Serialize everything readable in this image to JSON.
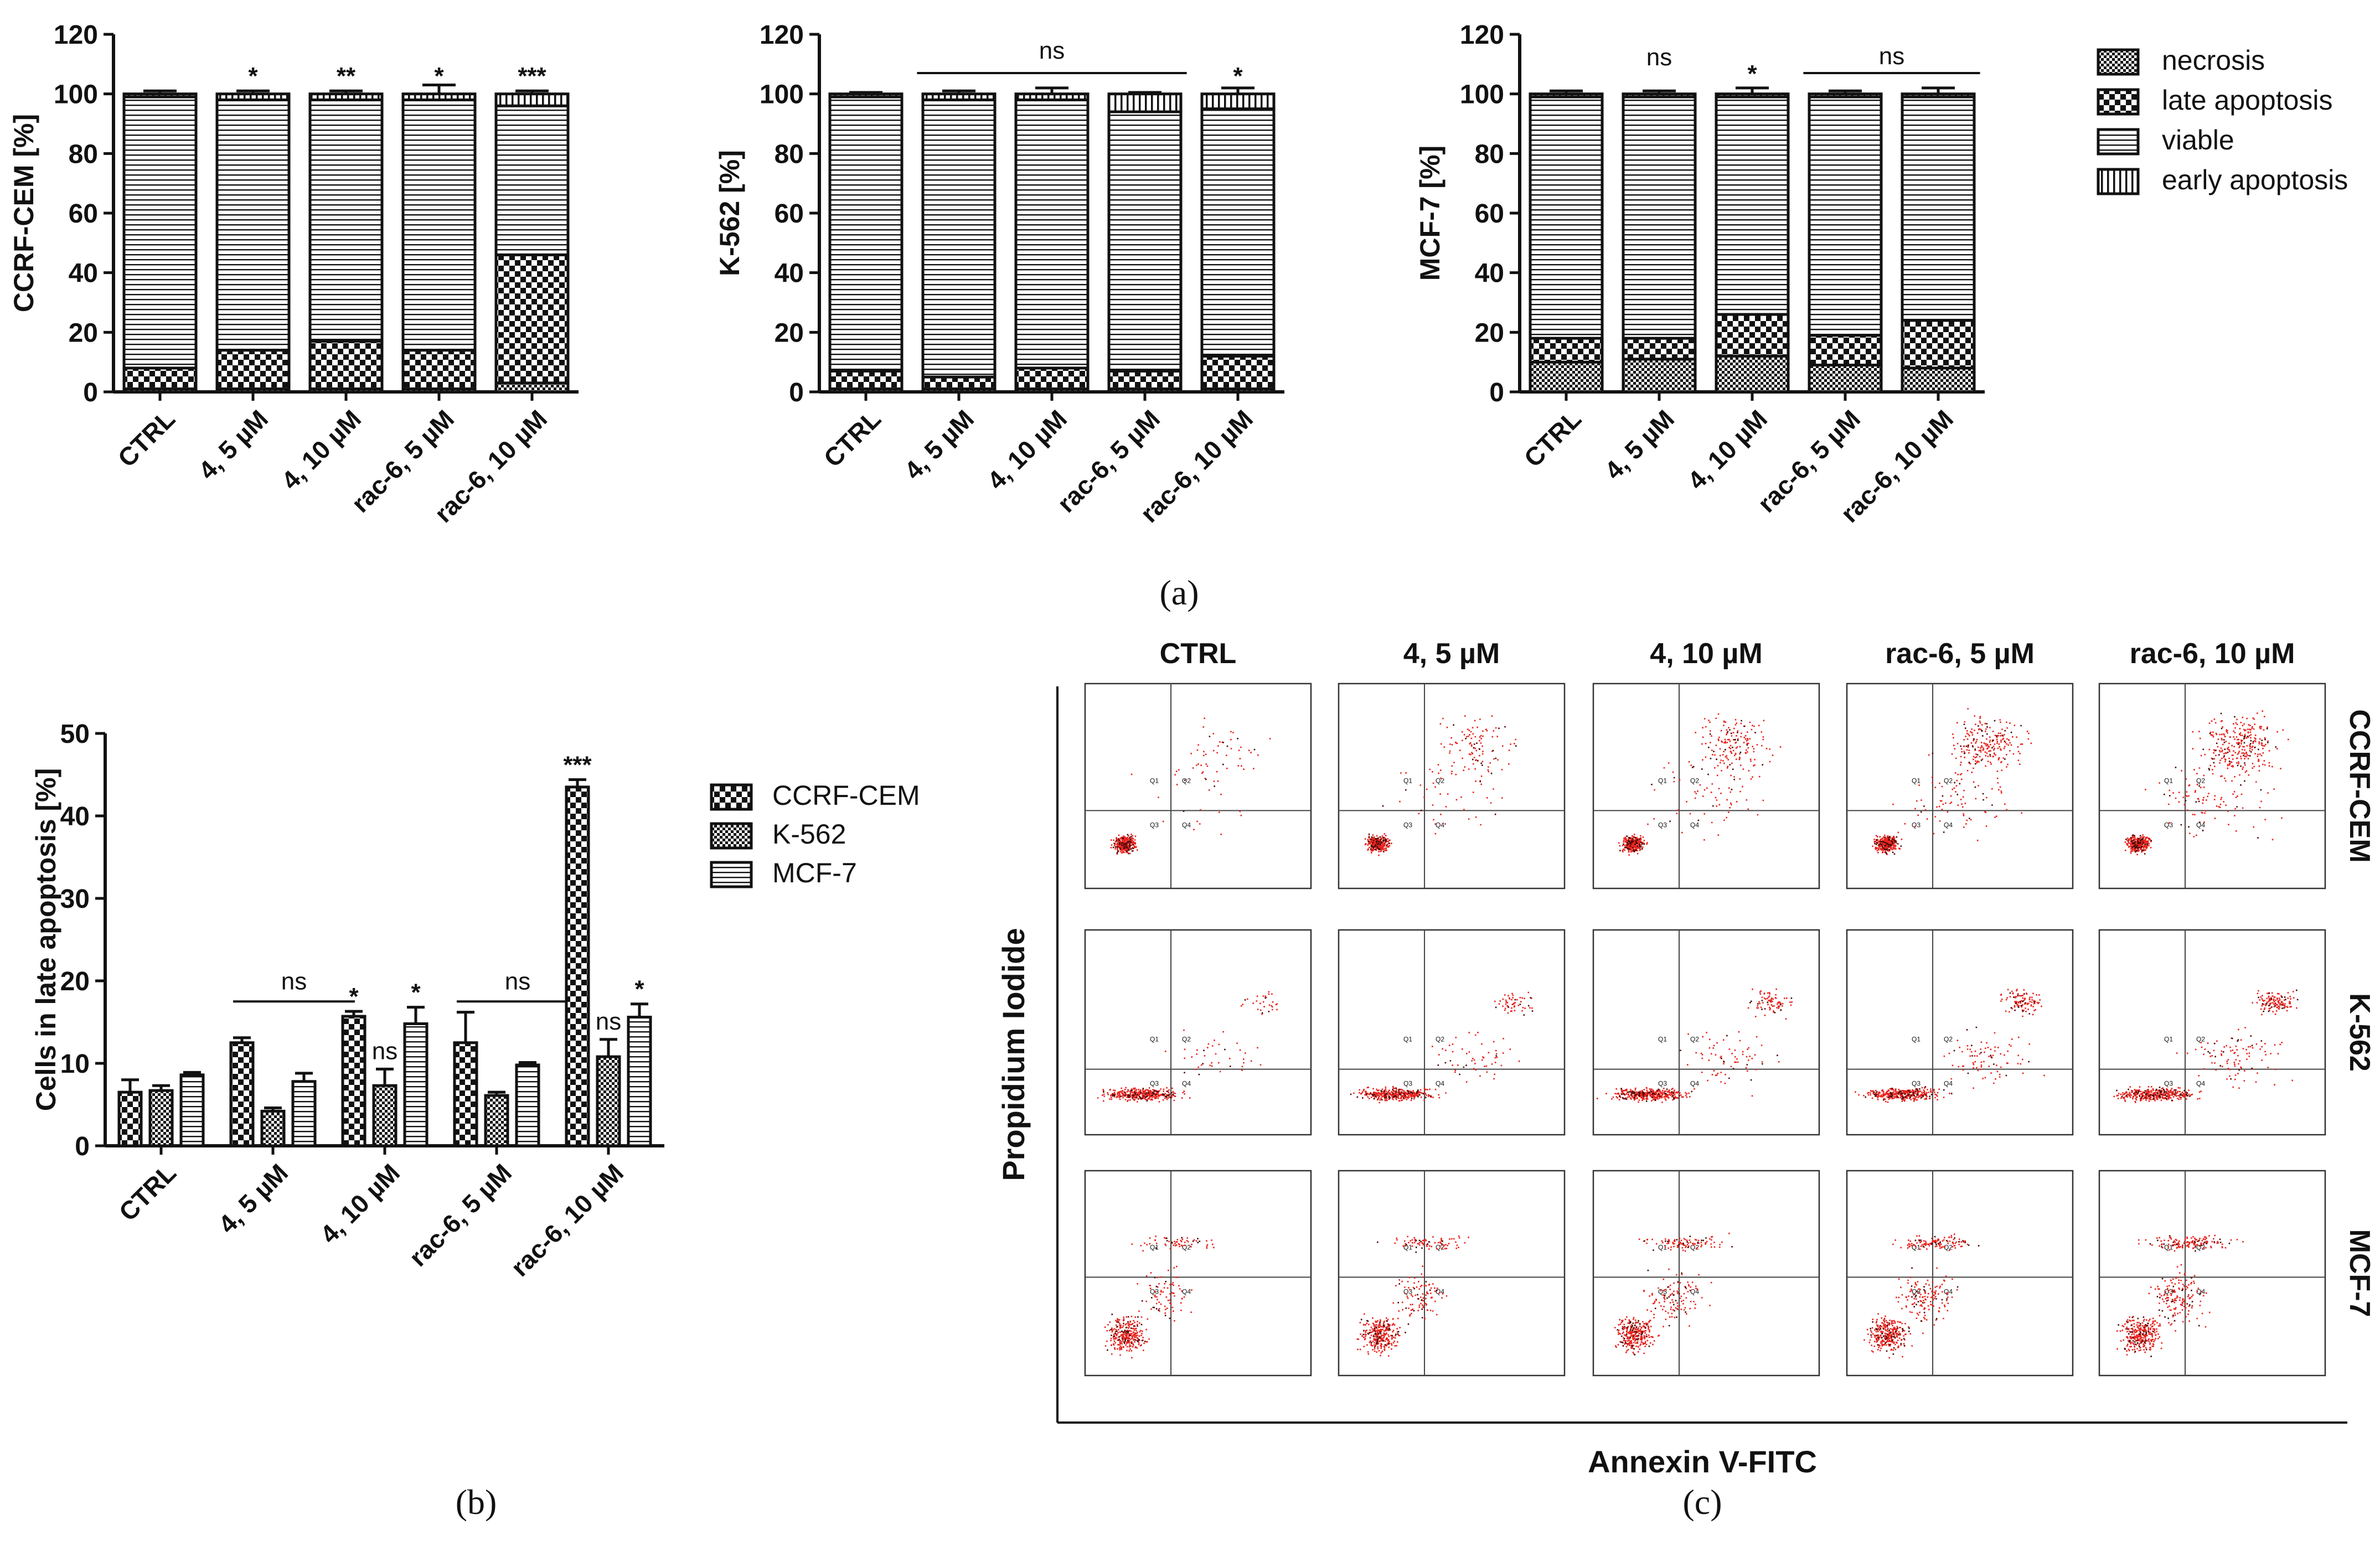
{
  "chart_data": [
    {
      "type": "bar",
      "stacked": true,
      "panel": "a",
      "categories": [
        "CTRL",
        "4, 5 µM",
        "4, 10 µM",
        "rac-6, 5 µM",
        "rac-6, 10 µM"
      ],
      "ylabel": "CCRF-CEM [%]",
      "ylim": [
        0,
        120
      ],
      "yticks": [
        0,
        20,
        40,
        60,
        80,
        100,
        120
      ],
      "series": [
        {
          "name": "necrosis",
          "values": [
            1,
            1,
            1,
            1,
            3
          ]
        },
        {
          "name": "late apoptosis",
          "values": [
            7,
            13,
            16,
            13,
            43
          ]
        },
        {
          "name": "viable",
          "values": [
            91,
            84,
            81,
            84,
            50
          ]
        },
        {
          "name": "early apoptosis",
          "values": [
            1,
            2,
            2,
            2,
            4
          ]
        }
      ],
      "error": [
        1,
        1,
        1,
        3,
        1
      ],
      "annotations": [
        "",
        "*",
        "**",
        "*",
        "***"
      ]
    },
    {
      "type": "bar",
      "stacked": true,
      "panel": "a",
      "categories": [
        "CTRL",
        "4, 5 µM",
        "4, 10 µM",
        "rac-6, 5 µM",
        "rac-6, 10 µM"
      ],
      "ylabel": "K-562 [%]",
      "ylim": [
        0,
        120
      ],
      "yticks": [
        0,
        20,
        40,
        60,
        80,
        100,
        120
      ],
      "series": [
        {
          "name": "necrosis",
          "values": [
            1,
            1,
            1,
            1,
            1
          ]
        },
        {
          "name": "late apoptosis",
          "values": [
            6,
            4,
            7,
            6,
            11
          ]
        },
        {
          "name": "viable",
          "values": [
            92,
            93,
            90,
            87,
            83
          ]
        },
        {
          "name": "early apoptosis",
          "values": [
            1,
            2,
            2,
            6,
            5
          ]
        }
      ],
      "error": [
        0.5,
        1,
        2,
        0.5,
        2
      ],
      "annotations": [
        "",
        "ns",
        "ns",
        "ns",
        "*"
      ]
    },
    {
      "type": "bar",
      "stacked": true,
      "panel": "a",
      "categories": [
        "CTRL",
        "4, 5 µM",
        "4, 10 µM",
        "rac-6, 5 µM",
        "rac-6, 10 µM"
      ],
      "ylabel": "MCF-7 [%]",
      "ylim": [
        0,
        120
      ],
      "yticks": [
        0,
        20,
        40,
        60,
        80,
        100,
        120
      ],
      "series": [
        {
          "name": "necrosis",
          "values": [
            10,
            11,
            12,
            9,
            8
          ]
        },
        {
          "name": "late apoptosis",
          "values": [
            8,
            7,
            14,
            10,
            16
          ]
        },
        {
          "name": "viable",
          "values": [
            81,
            81,
            73,
            80,
            75
          ]
        },
        {
          "name": "early apoptosis",
          "values": [
            1,
            1,
            1,
            1,
            1
          ]
        }
      ],
      "error": [
        1,
        1,
        2,
        1,
        2
      ],
      "annotations": [
        "",
        "ns",
        "*",
        "ns",
        "ns"
      ]
    },
    {
      "type": "bar",
      "panel": "b",
      "categories": [
        "CTRL",
        "4, 5 µM",
        "4, 10 µM",
        "rac-6, 5 µM",
        "rac-6, 10 µM"
      ],
      "ylabel": "Cells in late apoptosis [%]",
      "ylim": [
        0,
        50
      ],
      "yticks": [
        0,
        10,
        20,
        30,
        40,
        50
      ],
      "series": [
        {
          "name": "CCRF-CEM",
          "values": [
            6.5,
            12.5,
            15.7,
            12.5,
            43.5
          ],
          "error": [
            1.5,
            0.6,
            0.6,
            3.7,
            0.9
          ]
        },
        {
          "name": "K-562",
          "values": [
            6.7,
            4.2,
            7.3,
            6.1,
            10.8
          ],
          "error": [
            0.6,
            0.4,
            2.0,
            0.4,
            2.1
          ]
        },
        {
          "name": "MCF-7",
          "values": [
            8.6,
            7.8,
            14.8,
            9.8,
            15.6
          ],
          "error": [
            0.3,
            1.0,
            2.0,
            0.3,
            1.6
          ]
        }
      ],
      "annotations": [
        [
          "",
          "",
          ""
        ],
        [
          "ns",
          "",
          ""
        ],
        [
          "*",
          "ns",
          "*"
        ],
        [
          "ns",
          "",
          ""
        ],
        [
          "***",
          "ns",
          "*"
        ]
      ]
    },
    {
      "type": "scatter",
      "panel": "c",
      "columns": [
        "CTRL",
        "4, 5 µM",
        "4, 10 µM",
        "rac-6, 5 µM",
        "rac-6, 10 µM"
      ],
      "rows": [
        "CCRF-CEM",
        "K-562",
        "MCF-7"
      ],
      "xlabel": "Annexin V-FITC",
      "ylabel": "Propidium Iodide",
      "quadrants": [
        "Q1",
        "Q2",
        "Q3",
        "Q4"
      ]
    }
  ],
  "legend_a": [
    "necrosis",
    "late apoptosis",
    "viable",
    "early apoptosis"
  ],
  "legend_b": [
    "CCRF-CEM",
    "K-562",
    "MCF-7"
  ],
  "panel_labels": {
    "a": "(a)",
    "b": "(b)",
    "c": "(c)"
  },
  "ns_label": "ns",
  "colors": {
    "dot": "#e8231d",
    "dot_dense": "#4a0a08",
    "ink": "#111111"
  }
}
